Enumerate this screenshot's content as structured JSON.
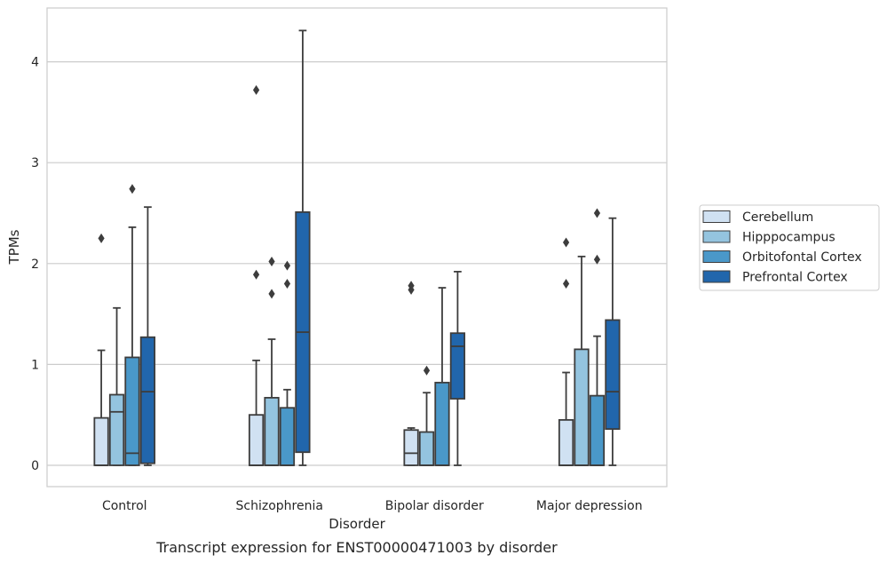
{
  "chart_data": {
    "type": "box",
    "xlabel": "Disorder",
    "ylabel": "TPMs",
    "caption": "Transcript expression for ENST00000471003 by disorder",
    "ylim": [
      -0.2,
      4.55
    ],
    "yticks": [
      "0",
      "1",
      "2",
      "3",
      "4"
    ],
    "grid": "horizontal",
    "legend_position": "right",
    "categories": [
      "Control",
      "Schizophrenia",
      "Bipolar disorder",
      "Major depression"
    ],
    "series": [
      {
        "name": "Cerebellum",
        "color": "#d0e1f2",
        "boxes": [
          {
            "low": 0.0,
            "q1": 0.0,
            "median": 0.0,
            "q3": 0.47,
            "high": 1.14,
            "outliers": [
              2.25
            ]
          },
          {
            "low": 0.0,
            "q1": 0.0,
            "median": 0.0,
            "q3": 0.5,
            "high": 1.04,
            "outliers": [
              1.89,
              3.72
            ]
          },
          {
            "low": 0.0,
            "q1": 0.0,
            "median": 0.12,
            "q3": 0.35,
            "high": 0.37,
            "outliers": [
              1.74,
              1.78
            ]
          },
          {
            "low": 0.0,
            "q1": 0.0,
            "median": 0.0,
            "q3": 0.45,
            "high": 0.92,
            "outliers": [
              1.8,
              2.21
            ]
          }
        ]
      },
      {
        "name": "Hipppocampus",
        "color": "#94c4df",
        "boxes": [
          {
            "low": 0.0,
            "q1": 0.0,
            "median": 0.53,
            "q3": 0.7,
            "high": 1.56,
            "outliers": []
          },
          {
            "low": 0.0,
            "q1": 0.0,
            "median": 0.0,
            "q3": 0.67,
            "high": 1.25,
            "outliers": [
              1.7,
              2.02
            ]
          },
          {
            "low": 0.0,
            "q1": 0.0,
            "median": 0.0,
            "q3": 0.33,
            "high": 0.72,
            "outliers": [
              0.94
            ]
          },
          {
            "low": 0.0,
            "q1": 0.0,
            "median": 0.0,
            "q3": 1.15,
            "high": 2.07,
            "outliers": []
          }
        ]
      },
      {
        "name": "Orbitofontal Cortex",
        "color": "#4a98c9",
        "boxes": [
          {
            "low": 0.0,
            "q1": 0.0,
            "median": 0.12,
            "q3": 1.07,
            "high": 2.36,
            "outliers": [
              2.74
            ]
          },
          {
            "low": 0.0,
            "q1": 0.0,
            "median": 0.0,
            "q3": 0.57,
            "high": 0.75,
            "outliers": [
              1.8,
              1.98
            ]
          },
          {
            "low": 0.0,
            "q1": 0.0,
            "median": 0.0,
            "q3": 0.82,
            "high": 1.76,
            "outliers": []
          },
          {
            "low": 0.0,
            "q1": 0.0,
            "median": 0.0,
            "q3": 0.69,
            "high": 1.28,
            "outliers": [
              2.04,
              2.5
            ]
          }
        ]
      },
      {
        "name": "Prefrontal Cortex",
        "color": "#2166ac",
        "boxes": [
          {
            "low": 0.0,
            "q1": 0.02,
            "median": 0.73,
            "q3": 1.27,
            "high": 2.56,
            "outliers": []
          },
          {
            "low": 0.0,
            "q1": 0.13,
            "median": 1.32,
            "q3": 2.51,
            "high": 4.31,
            "outliers": []
          },
          {
            "low": 0.0,
            "q1": 0.66,
            "median": 1.18,
            "q3": 1.31,
            "high": 1.92,
            "outliers": []
          },
          {
            "low": 0.0,
            "q1": 0.36,
            "median": 0.73,
            "q3": 1.44,
            "high": 2.45,
            "outliers": []
          }
        ]
      }
    ]
  }
}
